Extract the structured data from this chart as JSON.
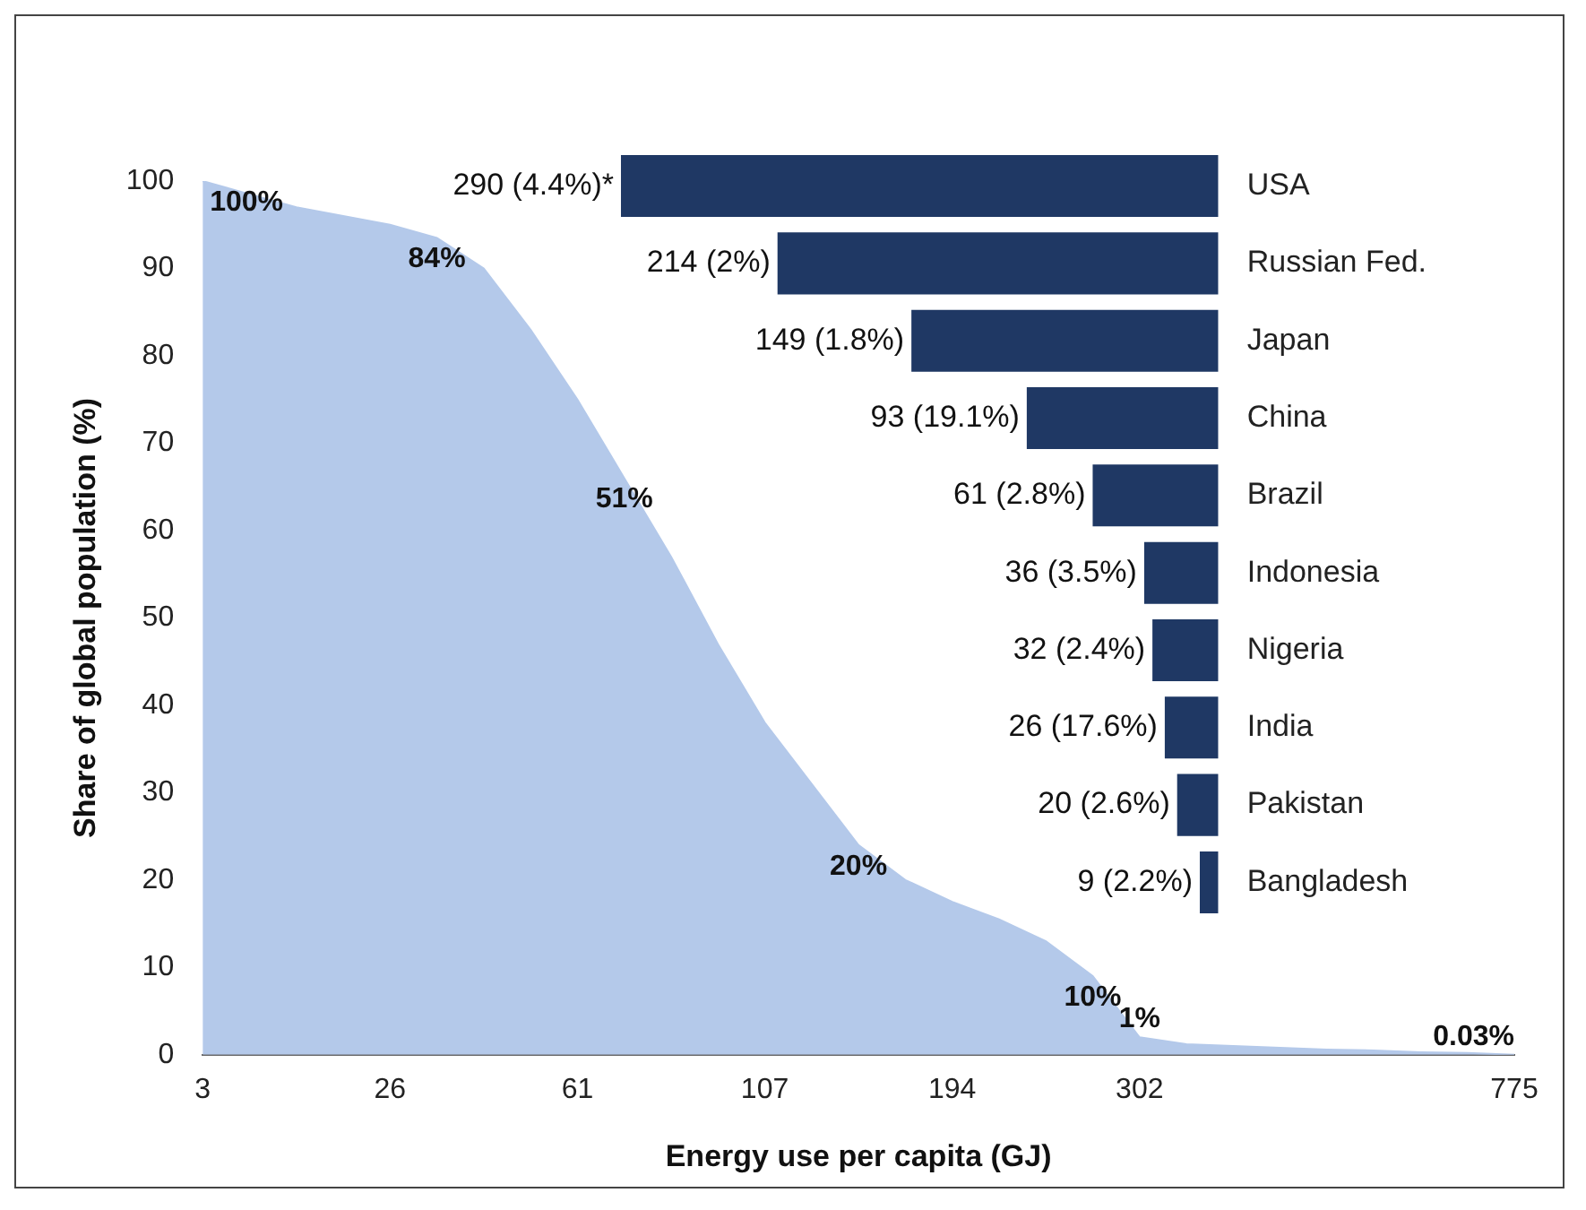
{
  "chart_data": [
    {
      "type": "area",
      "xlabel": "Energy use per capita (GJ)",
      "ylabel": "Share of global population (%)",
      "categories": [
        "3",
        null,
        null,
        null,
        "26",
        null,
        null,
        null,
        "61",
        null,
        null,
        null,
        "107",
        null,
        null,
        null,
        "194",
        null,
        null,
        null,
        "302",
        null,
        null,
        null,
        null,
        null,
        null,
        null,
        "775"
      ],
      "series": [
        {
          "color": "#b4c9ea",
          "values": [
            100,
            98.5,
            97,
            96,
            95,
            93.5,
            90,
            83,
            75,
            66,
            57,
            47,
            38,
            31,
            24,
            20,
            17.5,
            15.5,
            13,
            9,
            2,
            1.2,
            1,
            0.8,
            0.6,
            0.5,
            0.3,
            0.2,
            0
          ]
        }
      ],
      "annotations": [
        "100%",
        "84%",
        "51%",
        "20%",
        "10%",
        "1%",
        "0.03%"
      ],
      "ylim": [
        0,
        100
      ],
      "yticks": [
        0,
        10,
        20,
        30,
        40,
        50,
        60,
        70,
        80,
        90,
        100
      ],
      "grid": false,
      "legend": false
    },
    {
      "type": "bar",
      "orientation": "horizontal",
      "categories": [
        "USA",
        "Russian Fed.",
        "Japan",
        "China",
        "Brazil",
        "Indonesia",
        "Nigeria",
        "India",
        "Pakistan",
        "Bangladesh"
      ],
      "values": [
        290,
        214,
        149,
        93,
        61,
        36,
        32,
        26,
        20,
        9
      ],
      "value_labels": [
        "290 (4.4%)*",
        "214 (2%)",
        "149 (1.8%)",
        "93 (19.1%)",
        "61 (2.8%)",
        "36 (3.5%)",
        "32 (2.4%)",
        "26 (17.6%)",
        "20 (2.6%)",
        "9 (2.2%)"
      ],
      "color": "#1f3864",
      "legend": false,
      "tick_labels": "y"
    }
  ]
}
